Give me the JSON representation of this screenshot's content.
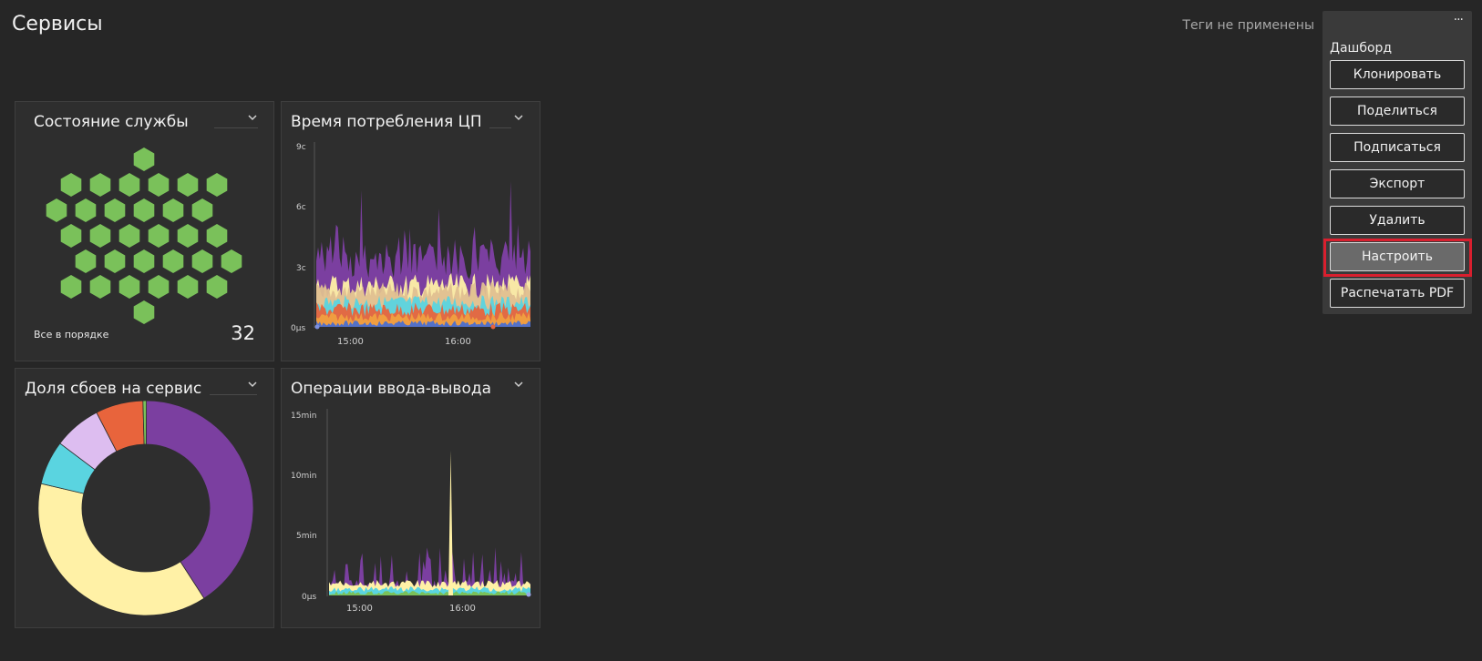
{
  "page": {
    "title": "Сервисы",
    "tags_status": "Теги не применены"
  },
  "tiles": {
    "service_health": {
      "title": "Состояние службы",
      "status": "Все в порядке",
      "count": "32",
      "color": "#7ac15a"
    },
    "cpu_time": {
      "title": "Время потребления ЦП",
      "y_ticks": [
        "9с",
        "6с",
        "3с",
        "0µs"
      ],
      "x_ticks": [
        "15:00",
        "16:00"
      ]
    },
    "failure_rate": {
      "title": "Доля сбоев на сервис"
    },
    "io_ops": {
      "title": "Операции ввода-вывода",
      "y_ticks": [
        "15min",
        "10min",
        "5min",
        "0µs"
      ],
      "x_ticks": [
        "15:00",
        "16:00"
      ]
    }
  },
  "chart_data": [
    {
      "type": "pie",
      "title": "Доля сбоев на сервис",
      "slices": [
        {
          "value": 40.0,
          "color": "#7b3fa0"
        },
        {
          "value": 37.0,
          "color": "#fff1a6"
        },
        {
          "value": 6.5,
          "color": "#5ad4e0"
        },
        {
          "value": 7.0,
          "color": "#ddbdf0"
        },
        {
          "value": 7.0,
          "color": "#e8643c"
        },
        {
          "value": 0.5,
          "color": "#7ac15a"
        }
      ]
    }
  ],
  "dashboard_menu": {
    "more": "···",
    "heading": "Дашборд",
    "items": [
      {
        "label": "Клонировать"
      },
      {
        "label": "Поделиться"
      },
      {
        "label": "Подписаться"
      },
      {
        "label": "Экспорт"
      },
      {
        "label": "Удалить"
      },
      {
        "label": "Настроить"
      },
      {
        "label": "Распечатать PDF"
      }
    ]
  }
}
